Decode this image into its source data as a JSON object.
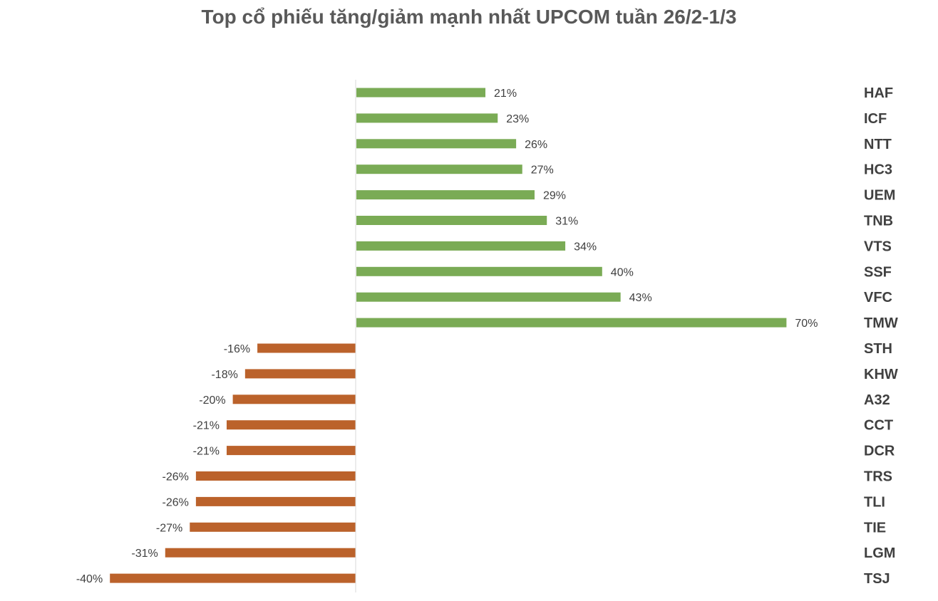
{
  "chart_data": {
    "type": "bar",
    "orientation": "horizontal",
    "title": "Top cổ phiếu tăng/giảm mạnh nhất UPCOM tuần 26/2-1/3",
    "categories": [
      "HAF",
      "ICF",
      "NTT",
      "HC3",
      "UEM",
      "TNB",
      "VTS",
      "SSF",
      "VFC",
      "TMW",
      "STH",
      "KHW",
      "A32",
      "CCT",
      "DCR",
      "TRS",
      "TLI",
      "TIE",
      "LGM",
      "TSJ"
    ],
    "values": [
      21,
      23,
      26,
      27,
      29,
      31,
      34,
      40,
      43,
      70,
      -16,
      -18,
      -20,
      -21,
      -21,
      -26,
      -26,
      -27,
      -31,
      -40
    ],
    "value_labels": [
      "21%",
      "23%",
      "26%",
      "27%",
      "29%",
      "31%",
      "34%",
      "40%",
      "43%",
      "70%",
      "-16%",
      "-18%",
      "-20%",
      "-21%",
      "-21%",
      "-26%",
      "-26%",
      "-27%",
      "-31%",
      "-40%"
    ],
    "unit": "%",
    "colors": {
      "positive": "#7aab55",
      "negative": "#bb622b",
      "axis": "#d9d9d9"
    },
    "grid": false,
    "legend": "none"
  }
}
